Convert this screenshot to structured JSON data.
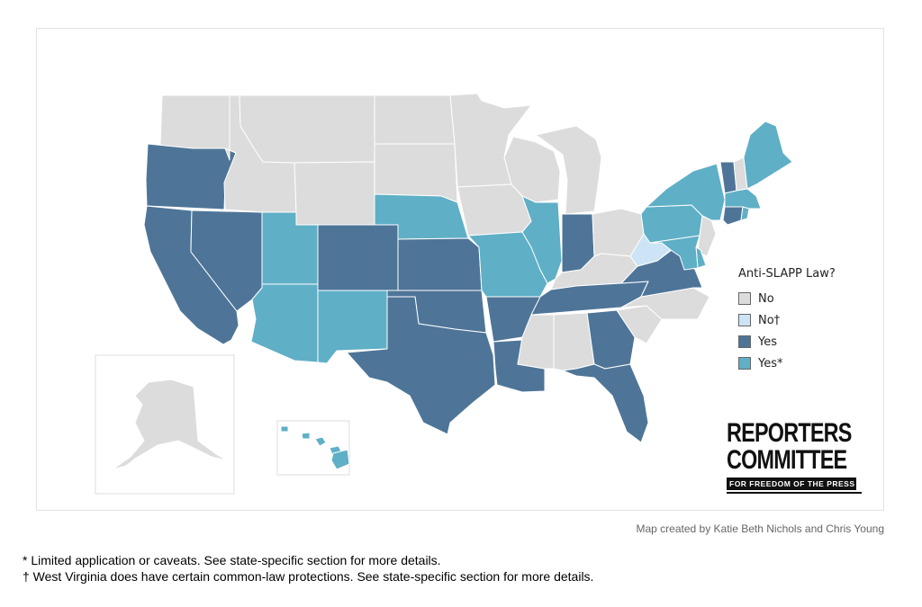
{
  "colors": {
    "No": "#dcdcdc",
    "No†": "#cce4f5",
    "Yes": "#4e7598",
    "Yes*": "#5fafc6",
    "border": "#ffffff",
    "inset_border": "#dddddd"
  },
  "legend": {
    "title": "Anti-SLAPP Law?",
    "items": [
      {
        "label": "No",
        "color": "#dcdcdc"
      },
      {
        "label": "No†",
        "color": "#cce4f5"
      },
      {
        "label": "Yes",
        "color": "#4e7598"
      },
      {
        "label": "Yes*",
        "color": "#5fafc6"
      }
    ]
  },
  "logo": {
    "line1": "REPORTERS",
    "line2": "COMMITTEE",
    "line3": "FOR FREEDOM OF THE PRESS"
  },
  "credit": "Map created by Katie Beth Nichols and Chris Young",
  "footnotes": {
    "asterisk": "* Limited application or caveats. See state-specific section for more details.",
    "dagger": "† West Virginia does have certain common-law protections. See state-specific section for more details."
  },
  "map_states": {
    "WA": "No",
    "OR": "Yes",
    "CA": "Yes",
    "NV": "Yes",
    "ID": "No",
    "MT": "No",
    "WY": "No",
    "UT": "Yes*",
    "AZ": "Yes*",
    "CO": "Yes",
    "NM": "Yes*",
    "ND": "No",
    "SD": "No",
    "NE": "Yes*",
    "KS": "Yes",
    "OK": "Yes",
    "TX": "Yes",
    "MN": "No",
    "IA": "No",
    "MO": "Yes*",
    "AR": "Yes",
    "LA": "Yes",
    "WI": "No",
    "IL": "Yes*",
    "MI": "No",
    "IN": "Yes",
    "OH": "No",
    "KY": "No",
    "TN": "Yes",
    "MS": "No",
    "AL": "No",
    "GA": "Yes",
    "FL": "Yes",
    "SC": "No",
    "NC": "No",
    "VA": "Yes",
    "WV": "No†",
    "PA": "Yes*",
    "NY": "Yes*",
    "VT": "Yes",
    "NH": "No",
    "ME": "Yes*",
    "MA": "Yes*",
    "CT": "Yes",
    "RI": "Yes*",
    "NJ": "No",
    "DE": "Yes*",
    "MD": "Yes*",
    "AK": "No",
    "HI": "Yes*"
  }
}
